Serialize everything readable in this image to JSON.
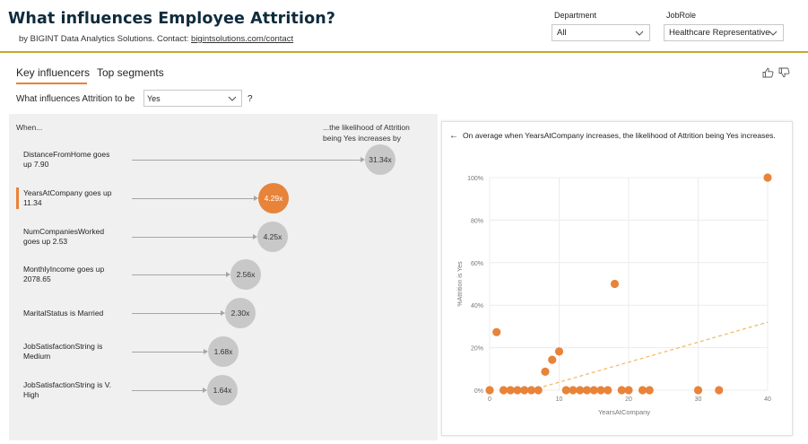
{
  "header": {
    "title": "What influences Employee Attrition?",
    "subtitle_prefix": "by BIGINT Data Analytics Solutions. Contact: ",
    "subtitle_link": "bigintsolutions.com/contact"
  },
  "slicers": {
    "department": {
      "label": "Department",
      "value": "All"
    },
    "jobrole": {
      "label": "JobRole",
      "value": "Healthcare Representative"
    }
  },
  "tabs": {
    "key_influencers": "Key influencers",
    "top_segments": "Top segments"
  },
  "question": {
    "text": "What influences Attrition to be",
    "value": "Yes",
    "help": "?"
  },
  "influencers": {
    "when_label": "When...",
    "likelihood_line1": "...the likelihood of Attrition",
    "likelihood_line2": "being Yes increases by",
    "rows": [
      {
        "line1": "DistanceFromHome goes",
        "line2": "up 7.90",
        "value": "31.34x",
        "factor": 31.34,
        "selected": false
      },
      {
        "line1": "YearsAtCompany goes up",
        "line2": "11.34",
        "value": "4.29x",
        "factor": 4.29,
        "selected": true
      },
      {
        "line1": "NumCompaniesWorked",
        "line2": "goes up 2.53",
        "value": "4.25x",
        "factor": 4.25,
        "selected": false
      },
      {
        "line1": "MonthlyIncome goes up",
        "line2": "2078.65",
        "value": "2.56x",
        "factor": 2.56,
        "selected": false
      },
      {
        "line1": "MaritalStatus is Married",
        "line2": "",
        "value": "2.30x",
        "factor": 2.3,
        "selected": false
      },
      {
        "line1": "JobSatisfactionString is",
        "line2": "Medium",
        "value": "1.68x",
        "factor": 1.68,
        "selected": false
      },
      {
        "line1": "JobSatisfactionString is V.",
        "line2": "High",
        "value": "1.64x",
        "factor": 1.64,
        "selected": false
      }
    ]
  },
  "detail": {
    "back_icon": "arrow-left-icon",
    "description": "On average when YearsAtCompany increases, the likelihood of Attrition being Yes increases."
  },
  "chart_data": {
    "type": "scatter",
    "title": "",
    "xlabel": "YearsAtCompany",
    "ylabel": "%Attrition is Yes",
    "xlim": [
      0,
      40
    ],
    "ylim": [
      0,
      100
    ],
    "x_ticks": [
      "0",
      "10",
      "20",
      "30",
      "40"
    ],
    "y_ticks": [
      "0%",
      "20%",
      "40%",
      "60%",
      "80%",
      "100%"
    ],
    "grid": true,
    "points_x": [
      0,
      1,
      2,
      3,
      4,
      5,
      6,
      7,
      8,
      9,
      10,
      11,
      12,
      13,
      14,
      15,
      16,
      17,
      18,
      19,
      20,
      22,
      23,
      30,
      33,
      40
    ],
    "points_y": [
      0,
      27.3,
      0,
      0,
      0,
      0,
      0,
      0,
      8.7,
      14.3,
      18.2,
      0,
      0,
      0,
      0,
      0,
      0,
      0,
      50,
      0,
      0,
      0,
      0,
      0,
      0,
      100
    ],
    "trendline": {
      "start": [
        6,
        0
      ],
      "end": [
        40,
        32
      ]
    }
  },
  "colors": {
    "accent": "#e8833a",
    "rule": "#c5a930",
    "bubble": "#c8c8c8",
    "title": "#0f2b3d"
  }
}
